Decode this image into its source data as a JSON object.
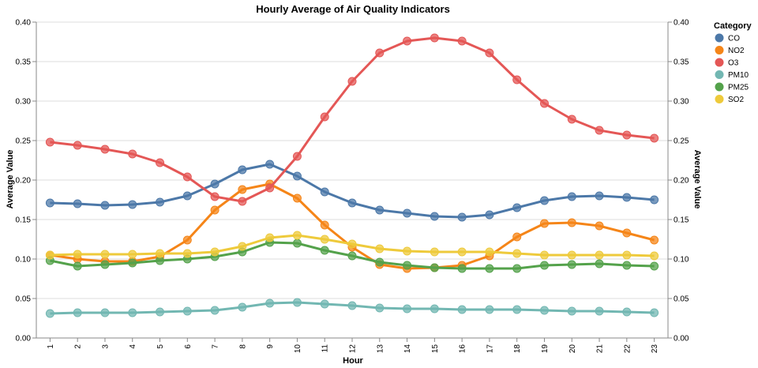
{
  "chart_data": {
    "type": "line",
    "title": "Hourly Average of Air Quality Indicators",
    "xlabel": "Hour",
    "ylabel": "Average Value",
    "ylabel_right": "Average Value",
    "legend_title": "Category",
    "legend_position": "top-right",
    "grid": true,
    "ylim": [
      0,
      0.4
    ],
    "y_ticks": [
      "0.00",
      "0.05",
      "0.10",
      "0.15",
      "0.20",
      "0.25",
      "0.30",
      "0.35",
      "0.40"
    ],
    "x": [
      1,
      2,
      3,
      4,
      5,
      6,
      7,
      8,
      9,
      10,
      11,
      12,
      13,
      14,
      15,
      16,
      17,
      18,
      19,
      20,
      21,
      22,
      23
    ],
    "series": [
      {
        "name": "CO",
        "color": "#4c78a8",
        "values": [
          0.171,
          0.17,
          0.168,
          0.169,
          0.172,
          0.18,
          0.195,
          0.213,
          0.22,
          0.205,
          0.185,
          0.171,
          0.162,
          0.158,
          0.154,
          0.153,
          0.156,
          0.165,
          0.174,
          0.179,
          0.18,
          0.178,
          0.175
        ]
      },
      {
        "name": "NO2",
        "color": "#f58518",
        "values": [
          0.105,
          0.1,
          0.097,
          0.097,
          0.103,
          0.124,
          0.162,
          0.188,
          0.195,
          0.177,
          0.143,
          0.115,
          0.093,
          0.088,
          0.089,
          0.092,
          0.104,
          0.128,
          0.145,
          0.146,
          0.142,
          0.133,
          0.124
        ]
      },
      {
        "name": "O3",
        "color": "#e45756",
        "values": [
          0.248,
          0.244,
          0.239,
          0.233,
          0.222,
          0.204,
          0.179,
          0.173,
          0.19,
          0.23,
          0.28,
          0.325,
          0.361,
          0.376,
          0.38,
          0.376,
          0.361,
          0.327,
          0.297,
          0.277,
          0.263,
          0.257,
          0.253
        ]
      },
      {
        "name": "PM10",
        "color": "#72b7b2",
        "values": [
          0.031,
          0.032,
          0.032,
          0.032,
          0.033,
          0.034,
          0.035,
          0.039,
          0.044,
          0.045,
          0.043,
          0.041,
          0.038,
          0.037,
          0.037,
          0.036,
          0.036,
          0.036,
          0.035,
          0.034,
          0.034,
          0.033,
          0.032
        ]
      },
      {
        "name": "PM25",
        "color": "#54a24b",
        "values": [
          0.098,
          0.091,
          0.093,
          0.095,
          0.098,
          0.1,
          0.103,
          0.109,
          0.121,
          0.12,
          0.111,
          0.104,
          0.096,
          0.092,
          0.089,
          0.088,
          0.088,
          0.088,
          0.092,
          0.093,
          0.094,
          0.092,
          0.091
        ]
      },
      {
        "name": "SO2",
        "color": "#eeca3b",
        "values": [
          0.105,
          0.106,
          0.106,
          0.106,
          0.107,
          0.107,
          0.109,
          0.116,
          0.127,
          0.13,
          0.125,
          0.119,
          0.113,
          0.11,
          0.109,
          0.109,
          0.109,
          0.107,
          0.105,
          0.105,
          0.105,
          0.105,
          0.104
        ]
      }
    ]
  }
}
